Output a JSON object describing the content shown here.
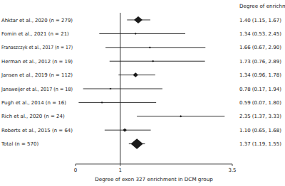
{
  "chart_data": {
    "type": "forest",
    "orientation": "horizontal",
    "annotation": "Degree of enrichment",
    "x_label": "Degree of exon 327 enrichment in DCM group",
    "categories": [
      "Ahktar et al., 2020 (n = 279)",
      "Fomin et al., 2021 (n = 21)",
      "Franaszczyk et al., 2017 (n = 17)",
      "Herman et al., 2012 (n = 19)",
      "Jansen et al., 2019 (n = 112)",
      "Jansweijer et al., 2017 (n = 18)",
      "Pugh et al., 2014 (n = 16)",
      "Rich et al., 2020 (n = 24)",
      "Roberts et al., 2015 (n = 64)",
      "Total (n = 570)"
    ],
    "values": [
      1.4,
      1.34,
      1.66,
      1.73,
      1.34,
      0.78,
      0.59,
      2.35,
      1.1,
      1.37
    ],
    "value_labels": [
      "1.40 (1.15, 1.67)",
      "1.34 (0.53, 2.45)",
      "1.66 (0.67, 2.90)",
      "1.73 (0.76, 2.89)",
      "1.34 (0.96, 1.78)",
      "0.78 (0.17, 1.94)",
      "0.59 (0.07, 1.80)",
      "2.35 (1.37, 3.33)",
      "1.10 (0.65, 1.68)",
      "1.37 (1.19, 1.55)"
    ],
    "ci_low": [
      1.15,
      0.53,
      0.67,
      0.76,
      0.96,
      0.17,
      0.07,
      1.37,
      0.65,
      1.19
    ],
    "ci_high": [
      1.67,
      2.45,
      2.9,
      2.89,
      1.78,
      1.94,
      1.8,
      3.33,
      1.68,
      1.55
    ],
    "sizes": [
      279,
      21,
      17,
      19,
      112,
      18,
      16,
      24,
      64,
      570
    ],
    "reference_line": 1,
    "xlim": [
      0,
      3.5
    ],
    "xticks": [
      0,
      1,
      3.5
    ],
    "color": "#1a1a1a",
    "marker": "diamond"
  }
}
